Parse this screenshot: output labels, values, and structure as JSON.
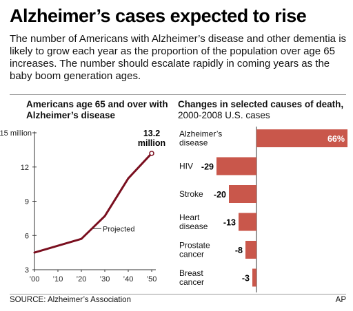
{
  "header": {
    "title": "Alzheimer’s cases expected to rise",
    "intro": "The number of Americans with Alzheimer’s disease and other dementia is likely to grow each year as the proportion of the population over age 65 increases. The number should escalate rapidly in coming years as the baby boom generation ages."
  },
  "chart_data": [
    {
      "type": "line",
      "title": "Americans age 65 and over with Alzheimer’s disease",
      "x_tick_labels": [
        "’00",
        "’10",
        "’20",
        "’30",
        "’40",
        "’50"
      ],
      "y_tick_labels": [
        "3",
        "6",
        "9",
        "12",
        "15 million"
      ],
      "xlim": [
        2000,
        2050
      ],
      "ylim": [
        3,
        15
      ],
      "series": [
        {
          "x": [
            2000,
            2020,
            2030,
            2040,
            2050
          ],
          "y": [
            4.5,
            5.7,
            7.7,
            11.0,
            13.2
          ]
        }
      ],
      "annotations": {
        "projected_label": "Projected",
        "end_value_label_line1": "13.2",
        "end_value_label_line2": "million"
      },
      "colors": {
        "line": "#7a0f1f",
        "axis": "#333333"
      },
      "grid": false
    },
    {
      "type": "bar",
      "orientation": "horizontal",
      "title_bold": "Changes in selected causes of death,",
      "title_rest": " 2000-2008 U.S. cases",
      "categories": [
        [
          "Alzheimer’s",
          "disease"
        ],
        [
          "HIV"
        ],
        [
          "Stroke"
        ],
        [
          "Heart",
          "disease"
        ],
        [
          "Prostate",
          "cancer"
        ],
        [
          "Breast",
          "cancer"
        ]
      ],
      "values": [
        66,
        -29,
        -20,
        -13,
        -8,
        -3
      ],
      "value_labels": [
        "66%",
        "-29",
        "-20",
        "-13",
        "-8",
        "-3"
      ],
      "colors": {
        "bar": "#c9574b",
        "zero_line": "#333333"
      },
      "grid": false
    }
  ],
  "footer": {
    "source": "SOURCE: Alzheimer’s Association",
    "credit": "AP"
  }
}
